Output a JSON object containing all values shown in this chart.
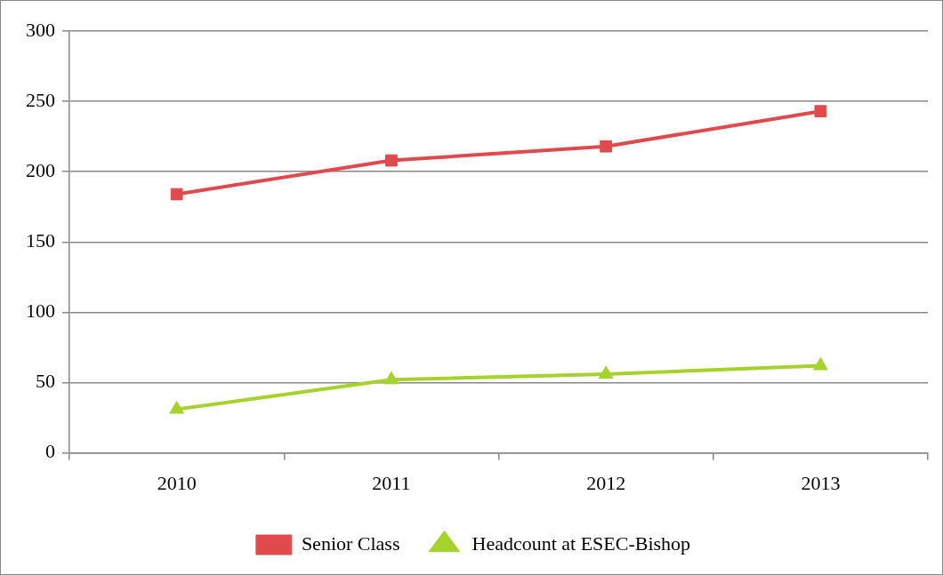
{
  "chart_data": {
    "type": "line",
    "categories": [
      "2010",
      "2011",
      "2012",
      "2013"
    ],
    "series": [
      {
        "name": "Senior Class",
        "color": "#e04a4c",
        "marker": "square",
        "values": [
          184,
          208,
          218,
          243
        ]
      },
      {
        "name": "Headcount at ESEC-Bishop",
        "color": "#a6d22c",
        "marker": "triangle",
        "values": [
          31,
          52,
          56,
          62
        ]
      }
    ],
    "ylim": [
      0,
      300
    ],
    "yticks": [
      0,
      50,
      100,
      150,
      200,
      250,
      300
    ],
    "grid": "y",
    "legend": "bottom",
    "line_style": "solid"
  }
}
